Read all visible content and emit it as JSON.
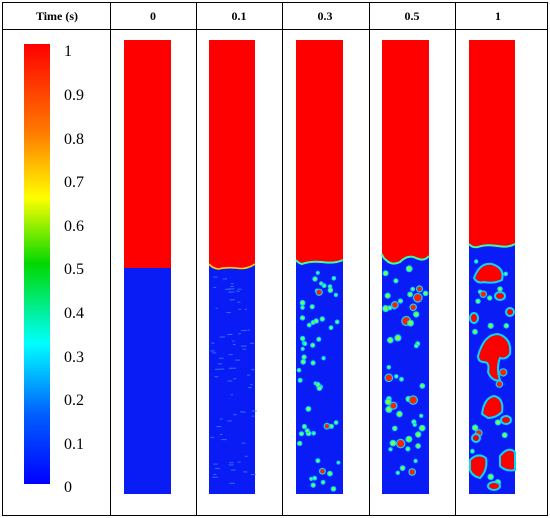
{
  "header": {
    "time_label": "Time (s)",
    "columns": [
      "0",
      "0.1",
      "0.3",
      "0.5",
      "1"
    ]
  },
  "colorbar": {
    "ticks": [
      "1",
      "0.9",
      "0.8",
      "0.7",
      "0.6",
      "0.5",
      "0.4",
      "0.3",
      "0.2",
      "0.1",
      "0"
    ],
    "stops": [
      "#ff0000",
      "#ff7a00",
      "#ffff00",
      "#00d800",
      "#00ffff",
      "#0060ff",
      "#0000ff"
    ]
  },
  "colors": {
    "phase_top": "#ff0000",
    "phase_bottom": "#0a1cf5",
    "bubble_edge": "#00d8ff",
    "bubble_ring": "#7fff3a",
    "grid": "#000000"
  }
}
